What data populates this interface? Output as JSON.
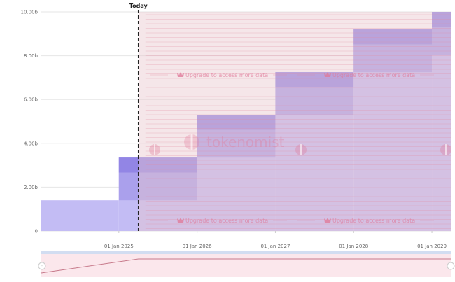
{
  "chart_data": {
    "type": "area",
    "title": "",
    "xlabel": "",
    "ylabel": "",
    "ylim": [
      0,
      10
    ],
    "y_ticks": [
      "0",
      "2.00b",
      "4.00b",
      "6.00b",
      "8.00b",
      "10.00b"
    ],
    "x_ticks": [
      "01 Jan 2025",
      "01 Jan 2026",
      "01 Jan 2027",
      "01 Jan 2028",
      "01 Jan 2029"
    ],
    "x_tick_years": [
      2025,
      2026,
      2027,
      2028,
      2029
    ],
    "xlim_years": [
      2024.0,
      2029.25
    ],
    "today_label": "Today",
    "today_year": 2025.25,
    "grid": "horizontal",
    "legend": "none",
    "step_cumulative_billions": [
      {
        "from": 2024.0,
        "to": 2025.0,
        "value": 1.4
      },
      {
        "from": 2025.0,
        "to": 2026.0,
        "value": 3.35
      },
      {
        "from": 2026.0,
        "to": 2027.0,
        "value": 5.3
      },
      {
        "from": 2027.0,
        "to": 2028.0,
        "value": 7.25
      },
      {
        "from": 2028.0,
        "to": 2029.0,
        "value": 9.2
      },
      {
        "from": 2029.0,
        "to": 2029.25,
        "value": 10.0
      }
    ],
    "step_increment_billions": 1.95,
    "colors": {
      "area_light": "#c3bcf4",
      "area_mid": "#aaa0ec",
      "area_dark": "#7d6fe0",
      "locked_overlay": "#e9c7cf",
      "locked_lines": "#e18aa2",
      "today_line": "#222222",
      "navigator_fill": "#fbe7ec",
      "navigator_line": "#c77a8b"
    }
  },
  "watermark": {
    "upgrade_text": "Upgrade to access more data",
    "brand": "tokenomist"
  }
}
